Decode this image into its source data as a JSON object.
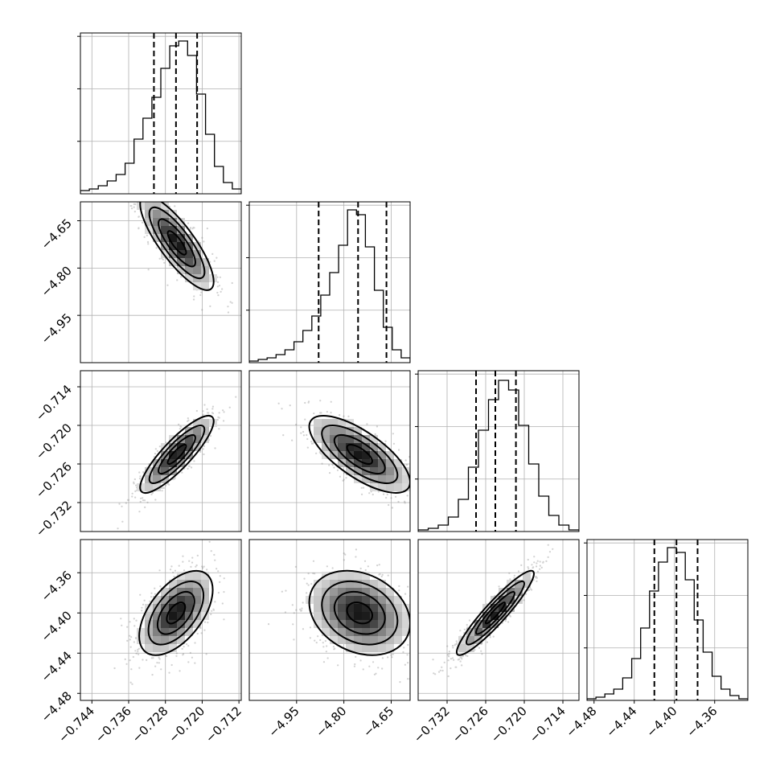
{
  "chart_data": {
    "type": "corner",
    "parameters": [
      {
        "name": "",
        "range": [
          -0.7465,
          -0.7115
        ],
        "ticks": [
          -0.744,
          -0.736,
          -0.728,
          -0.72,
          -0.712
        ],
        "tick_labels": [
          "−0.744",
          "−0.736",
          "−0.728",
          "−0.720",
          "−0.712"
        ]
      },
      {
        "name": "",
        "range": [
          -5.1,
          -4.59
        ],
        "ticks": [
          -4.95,
          -4.8,
          -4.65
        ],
        "tick_labels": [
          "−4.95",
          "−4.80",
          "−4.65"
        ]
      },
      {
        "name": "",
        "range": [
          -0.7365,
          -0.7115
        ],
        "ticks": [
          -0.732,
          -0.726,
          -0.72,
          -0.714
        ],
        "tick_labels": [
          "−0.732",
          "−0.726",
          "−0.720",
          "−0.714"
        ]
      },
      {
        "name": "",
        "range": [
          -4.487,
          -4.327
        ],
        "ticks": [
          -4.48,
          -4.44,
          -4.4,
          -4.36
        ],
        "tick_labels": [
          "−4.48",
          "−4.44",
          "−4.40",
          "−4.36"
        ]
      }
    ],
    "marginals": [
      {
        "param": 0,
        "quantiles": [
          -0.7305,
          -0.7257,
          -0.7211
        ],
        "histogram": [
          0.02,
          0.03,
          0.05,
          0.08,
          0.12,
          0.19,
          0.34,
          0.47,
          0.6,
          0.78,
          0.92,
          0.95,
          0.86,
          0.62,
          0.37,
          0.17,
          0.07,
          0.03
        ]
      },
      {
        "param": 1,
        "quantiles": [
          -4.88,
          -4.755,
          -4.665
        ],
        "histogram": [
          0.01,
          0.02,
          0.03,
          0.05,
          0.08,
          0.13,
          0.2,
          0.29,
          0.42,
          0.56,
          0.73,
          0.95,
          0.92,
          0.72,
          0.45,
          0.22,
          0.08,
          0.03
        ]
      },
      {
        "param": 2,
        "quantiles": [
          -0.7275,
          -0.7245,
          -0.7213
        ],
        "histogram": [
          0.01,
          0.02,
          0.04,
          0.09,
          0.2,
          0.4,
          0.63,
          0.82,
          0.94,
          0.88,
          0.66,
          0.42,
          0.22,
          0.1,
          0.04,
          0.01
        ]
      },
      {
        "param": 3,
        "quantiles": [
          -4.42,
          -4.398,
          -4.377
        ],
        "histogram": [
          0.01,
          0.02,
          0.04,
          0.07,
          0.14,
          0.26,
          0.45,
          0.68,
          0.86,
          0.95,
          0.92,
          0.75,
          0.5,
          0.3,
          0.15,
          0.07,
          0.03,
          0.01
        ]
      }
    ],
    "joint": [
      {
        "x_param": 0,
        "y_param": 1,
        "center": [
          -0.7255,
          -4.72
        ],
        "sigma": [
          0.004,
          0.075
        ],
        "rho": -0.82
      },
      {
        "x_param": 0,
        "y_param": 2,
        "center": [
          -0.7255,
          -0.7245
        ],
        "sigma": [
          0.004,
          0.003
        ],
        "rho": 0.86
      },
      {
        "x_param": 1,
        "y_param": 2,
        "center": [
          -4.75,
          -0.7245
        ],
        "sigma": [
          0.08,
          0.003
        ],
        "rho": -0.72
      },
      {
        "x_param": 0,
        "y_param": 3,
        "center": [
          -0.7257,
          -4.4
        ],
        "sigma": [
          0.004,
          0.021
        ],
        "rho": 0.55
      },
      {
        "x_param": 1,
        "y_param": 3,
        "center": [
          -4.75,
          -4.4
        ],
        "sigma": [
          0.08,
          0.021
        ],
        "rho": -0.25
      },
      {
        "x_param": 2,
        "y_param": 3,
        "center": [
          -0.7245,
          -4.4
        ],
        "sigma": [
          0.003,
          0.021
        ],
        "rho": 0.93
      }
    ],
    "contour_levels": [
      0.5,
      1.0,
      1.5,
      2.0
    ],
    "grid": true,
    "colors": {
      "density_max": "#000000",
      "density_min": "#ffffff",
      "points": "#7f7f7f",
      "lines": "#000000"
    }
  }
}
